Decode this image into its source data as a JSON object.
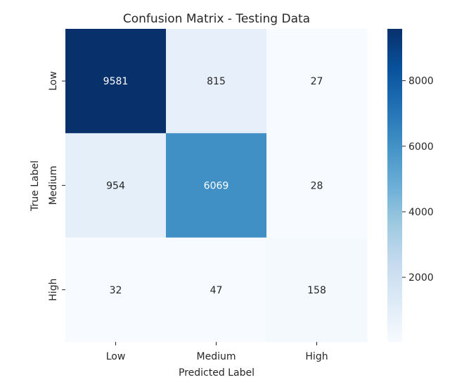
{
  "chart_data": {
    "type": "heatmap",
    "title": "Confusion Matrix - Testing Data",
    "xlabel": "Predicted Label",
    "ylabel": "True Label",
    "x_categories": [
      "Low",
      "Medium",
      "High"
    ],
    "y_categories": [
      "Low",
      "Medium",
      "High"
    ],
    "values": [
      [
        9581,
        815,
        27
      ],
      [
        954,
        6069,
        28
      ],
      [
        32,
        47,
        158
      ]
    ],
    "colormap": "Blues",
    "colorbar": {
      "range": [
        27,
        9581
      ],
      "ticks": [
        2000,
        4000,
        6000,
        8000
      ],
      "tick_labels": [
        "2000",
        "4000",
        "6000",
        "8000"
      ]
    },
    "grid": false
  }
}
